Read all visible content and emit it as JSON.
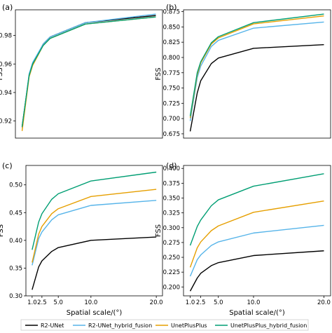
{
  "chart_data": [
    {
      "type": "line",
      "panel_label": "(a)",
      "x": [
        1.0,
        2.0,
        2.5,
        4.0,
        5.0,
        10.0,
        20.0
      ],
      "ylabel": "FSS",
      "xlabel": "",
      "ylim": [
        0.908,
        0.998
      ],
      "yticks": [
        "0.92",
        "0.94",
        "0.96",
        "0.98"
      ],
      "ytick_values": [
        0.92,
        0.94,
        0.96,
        0.98
      ],
      "xticks": [],
      "series": [
        {
          "name": "R2-UNet",
          "values": [
            0.916,
            0.952,
            0.96,
            0.974,
            0.979,
            0.989,
            0.994
          ]
        },
        {
          "name": "R2-UNet_hybrid_fusion",
          "values": [
            0.915,
            0.953,
            0.961,
            0.974,
            0.979,
            0.989,
            0.995
          ]
        },
        {
          "name": "UnetPlusPlus",
          "values": [
            0.913,
            0.951,
            0.959,
            0.973,
            0.978,
            0.988,
            0.993
          ]
        },
        {
          "name": "UnetPlusPlus_hybrid_fusion",
          "values": [
            0.916,
            0.952,
            0.96,
            0.973,
            0.978,
            0.988,
            0.993
          ]
        }
      ]
    },
    {
      "type": "line",
      "panel_label": "(b)",
      "x": [
        1.0,
        2.0,
        2.5,
        4.0,
        5.0,
        10.0,
        20.0
      ],
      "ylabel": "FSS",
      "xlabel": "",
      "ylim": [
        0.668,
        0.878
      ],
      "yticks": [
        "0.675",
        "0.700",
        "0.725",
        "0.750",
        "0.775",
        "0.800",
        "0.825",
        "0.850",
        "0.875"
      ],
      "ytick_values": [
        0.675,
        0.7,
        0.725,
        0.75,
        0.775,
        0.8,
        0.825,
        0.85,
        0.875
      ],
      "xticks": [],
      "series": [
        {
          "name": "R2-UNet",
          "values": [
            0.679,
            0.742,
            0.762,
            0.79,
            0.799,
            0.815,
            0.821
          ]
        },
        {
          "name": "R2-UNet_hybrid_fusion",
          "values": [
            0.696,
            0.767,
            0.786,
            0.818,
            0.828,
            0.848,
            0.858
          ]
        },
        {
          "name": "UnetPlusPlus",
          "values": [
            0.701,
            0.772,
            0.791,
            0.822,
            0.832,
            0.855,
            0.868
          ]
        },
        {
          "name": "UnetPlusPlus_hybrid_fusion",
          "values": [
            0.704,
            0.775,
            0.793,
            0.824,
            0.834,
            0.857,
            0.871
          ]
        }
      ]
    },
    {
      "type": "line",
      "panel_label": "(c)",
      "x": [
        1.0,
        2.0,
        2.5,
        4.0,
        5.0,
        10.0,
        20.0
      ],
      "ylabel": "FSS",
      "xlabel": "Spatial scale/(°)",
      "ylim": [
        0.3,
        0.535
      ],
      "yticks": [
        "0.30",
        "0.35",
        "0.40",
        "0.45",
        "0.50"
      ],
      "ytick_values": [
        0.3,
        0.35,
        0.4,
        0.45,
        0.5
      ],
      "xticks": [
        "1.0",
        "2.5",
        "5.0",
        "10.0",
        "20.0"
      ],
      "xtick_values": [
        1.0,
        2.5,
        5.0,
        10.0,
        20.0
      ],
      "series": [
        {
          "name": "R2-UNet",
          "values": [
            0.311,
            0.352,
            0.363,
            0.38,
            0.387,
            0.4,
            0.406
          ]
        },
        {
          "name": "R2-UNet_hybrid_fusion",
          "values": [
            0.355,
            0.403,
            0.415,
            0.437,
            0.446,
            0.463,
            0.472
          ]
        },
        {
          "name": "UnetPlusPlus",
          "values": [
            0.36,
            0.411,
            0.425,
            0.448,
            0.457,
            0.479,
            0.492
          ]
        },
        {
          "name": "UnetPlusPlus_hybrid_fusion",
          "values": [
            0.383,
            0.433,
            0.448,
            0.474,
            0.484,
            0.507,
            0.523
          ]
        }
      ]
    },
    {
      "type": "line",
      "panel_label": "(d)",
      "x": [
        1.0,
        2.0,
        2.5,
        4.0,
        5.0,
        10.0,
        20.0
      ],
      "ylabel": "FSS",
      "xlabel": "Spatial scale/(°)",
      "ylim": [
        0.185,
        0.405
      ],
      "yticks": [
        "0.200",
        "0.225",
        "0.250",
        "0.275",
        "0.300",
        "0.325",
        "0.350",
        "0.375",
        "0.400"
      ],
      "ytick_values": [
        0.2,
        0.225,
        0.25,
        0.275,
        0.3,
        0.325,
        0.35,
        0.375,
        0.4
      ],
      "xticks": [
        "1.0",
        "2.5",
        "5.0",
        "10.0",
        "20.0"
      ],
      "xtick_values": [
        1.0,
        2.5,
        5.0,
        10.0,
        20.0
      ],
      "series": [
        {
          "name": "R2-UNet",
          "values": [
            0.193,
            0.215,
            0.223,
            0.236,
            0.241,
            0.253,
            0.261
          ]
        },
        {
          "name": "R2-UNet_hybrid_fusion",
          "values": [
            0.218,
            0.246,
            0.254,
            0.27,
            0.276,
            0.291,
            0.304
          ]
        },
        {
          "name": "UnetPlusPlus",
          "values": [
            0.233,
            0.266,
            0.276,
            0.295,
            0.303,
            0.326,
            0.345
          ]
        },
        {
          "name": "UnetPlusPlus_hybrid_fusion",
          "values": [
            0.27,
            0.302,
            0.313,
            0.337,
            0.347,
            0.37,
            0.391
          ]
        }
      ]
    }
  ],
  "legend": {
    "placement": "bottom",
    "items": [
      {
        "label": "R2-UNet",
        "color": "#000000"
      },
      {
        "label": "R2-UNet_hybrid_fusion",
        "color": "#56b4e9"
      },
      {
        "label": "UnetPlusPlus",
        "color": "#e69f00"
      },
      {
        "label": "UnetPlusPlus_hybrid_fusion",
        "color": "#009e73"
      }
    ]
  },
  "colors": {
    "R2-UNet": "#000000",
    "R2-UNet_hybrid_fusion": "#56b4e9",
    "UnetPlusPlus": "#e69f00",
    "UnetPlusPlus_hybrid_fusion": "#009e73"
  }
}
